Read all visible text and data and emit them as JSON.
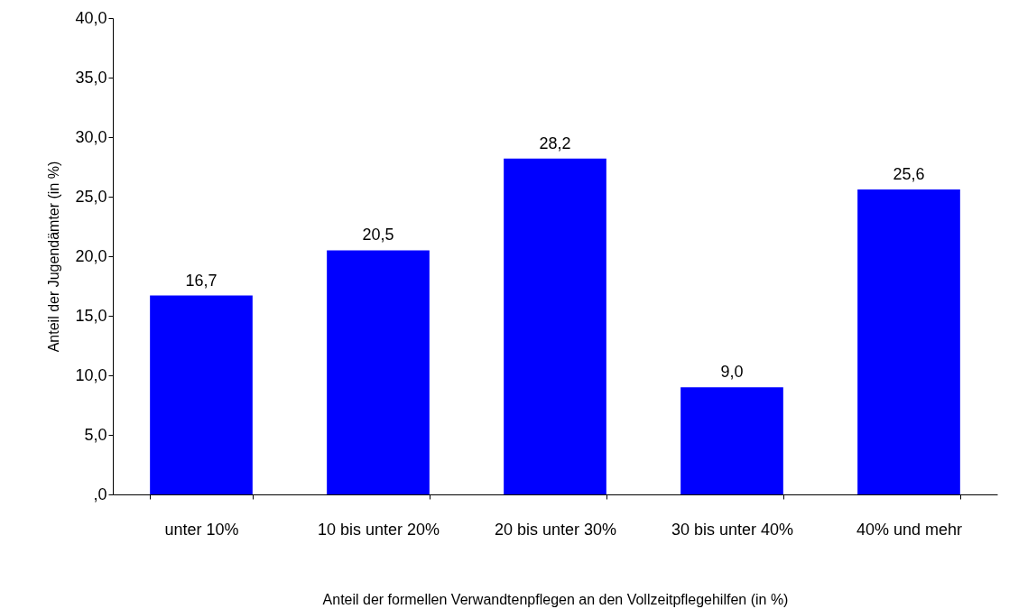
{
  "chart_data": {
    "type": "bar",
    "xlabel": "Anteil der formellen Verwandtenpflegen an den Vollzeitpflegehilfen (in %)",
    "ylabel": "Anteil der Jugendämter (in %)",
    "categories": [
      "unter 10%",
      "10 bis unter 20%",
      "20 bis unter 30%",
      "30 bis unter 40%",
      "40% und mehr"
    ],
    "values": [
      16.7,
      20.5,
      28.2,
      9.0,
      25.6
    ],
    "value_labels": [
      "16,7",
      "20,5",
      "28,2",
      "9,0",
      "25,6"
    ],
    "color": "#0000ff",
    "ylim": [
      0,
      40
    ],
    "yticks": [
      {
        "value": 0,
        "label": ",0"
      },
      {
        "value": 5,
        "label": "5,0"
      },
      {
        "value": 10,
        "label": "10,0"
      },
      {
        "value": 15,
        "label": "15,0"
      },
      {
        "value": 20,
        "label": "20,0"
      },
      {
        "value": 25,
        "label": "25,0"
      },
      {
        "value": 30,
        "label": "30,0"
      },
      {
        "value": 35,
        "label": "35,0"
      },
      {
        "value": 40,
        "label": "40,0"
      }
    ],
    "grid": false
  }
}
